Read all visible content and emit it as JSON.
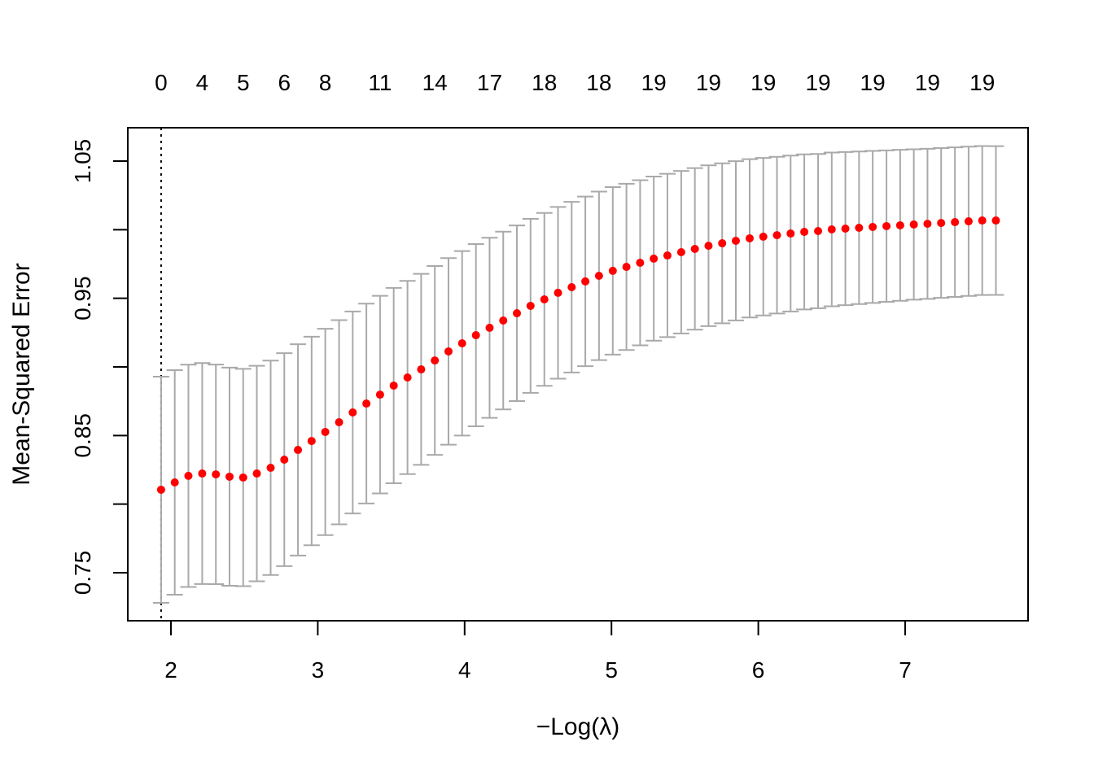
{
  "chart_data": {
    "type": "scatter",
    "title": "",
    "xlabel": "−Log(λ)",
    "ylabel": "Mean-Squared Error",
    "xlim": [
      1.9,
      7.85
    ],
    "ylim": [
      0.716,
      1.075
    ],
    "x_ticks": [
      2,
      3,
      4,
      5,
      6,
      7
    ],
    "y_ticks": [
      0.75,
      0.8,
      0.85,
      0.9,
      0.95,
      1.0,
      1.05
    ],
    "y_tick_labels": [
      "0.75",
      "",
      "0.85",
      "",
      "0.95",
      "",
      "1.05"
    ],
    "grid": false,
    "legend": "none",
    "point_color": "#ff0000",
    "errorbar_color": "#a9a9a9",
    "vline_x": 1.933,
    "top_axis": {
      "x": [
        1.933,
        2.213,
        2.492,
        2.772,
        3.051,
        3.424,
        3.797,
        4.17,
        4.543,
        4.915,
        5.288,
        5.661,
        6.034,
        6.407,
        6.779,
        7.152,
        7.525
      ],
      "labels": [
        "0",
        "4",
        "5",
        "6",
        "8",
        "11",
        "14",
        "17",
        "18",
        "18",
        "19",
        "19",
        "19",
        "19",
        "19",
        "19",
        "19"
      ]
    },
    "x": [
      1.933,
      2.026,
      2.119,
      2.213,
      2.306,
      2.399,
      2.492,
      2.585,
      2.679,
      2.772,
      2.865,
      2.958,
      3.051,
      3.145,
      3.238,
      3.331,
      3.424,
      3.517,
      3.611,
      3.704,
      3.797,
      3.89,
      3.983,
      4.077,
      4.17,
      4.263,
      4.356,
      4.449,
      4.543,
      4.636,
      4.729,
      4.822,
      4.915,
      5.009,
      5.102,
      5.195,
      5.288,
      5.381,
      5.475,
      5.568,
      5.661,
      5.754,
      5.847,
      5.941,
      6.034,
      6.127,
      6.22,
      6.313,
      6.407,
      6.5,
      6.593,
      6.686,
      6.779,
      6.873,
      6.966,
      7.059,
      7.152,
      7.245,
      7.339,
      7.432,
      7.525,
      7.618
    ],
    "mse": [
      0.8105,
      0.8158,
      0.8206,
      0.8223,
      0.8217,
      0.82,
      0.8194,
      0.8223,
      0.8265,
      0.8324,
      0.8395,
      0.846,
      0.8526,
      0.8597,
      0.8668,
      0.8733,
      0.8798,
      0.8864,
      0.8923,
      0.8982,
      0.9047,
      0.9113,
      0.9172,
      0.9231,
      0.9285,
      0.9338,
      0.9391,
      0.9445,
      0.9492,
      0.954,
      0.9581,
      0.9623,
      0.9664,
      0.97,
      0.9729,
      0.9759,
      0.9789,
      0.9812,
      0.9836,
      0.986,
      0.9883,
      0.9901,
      0.9919,
      0.9937,
      0.9949,
      0.996,
      0.9972,
      0.9984,
      0.999,
      1.0002,
      1.0008,
      1.0014,
      1.002,
      1.0026,
      1.0032,
      1.0038,
      1.0043,
      1.0049,
      1.0055,
      1.0061,
      1.0067,
      1.0067
    ],
    "se": [
      0.0824,
      0.0818,
      0.081,
      0.0805,
      0.08,
      0.0795,
      0.0792,
      0.0785,
      0.0781,
      0.0776,
      0.077,
      0.076,
      0.0752,
      0.0744,
      0.0736,
      0.0728,
      0.072,
      0.0712,
      0.0704,
      0.0696,
      0.0688,
      0.068,
      0.0672,
      0.0664,
      0.0656,
      0.0648,
      0.064,
      0.0634,
      0.063,
      0.0626,
      0.0622,
      0.0618,
      0.0614,
      0.061,
      0.0606,
      0.0602,
      0.0598,
      0.0595,
      0.0592,
      0.0589,
      0.0586,
      0.0583,
      0.058,
      0.0577,
      0.0574,
      0.0571,
      0.0568,
      0.0565,
      0.0562,
      0.056,
      0.0558,
      0.0556,
      0.0554,
      0.0552,
      0.055,
      0.0548,
      0.0547,
      0.0546,
      0.0545,
      0.0544,
      0.0543,
      0.0542
    ]
  }
}
